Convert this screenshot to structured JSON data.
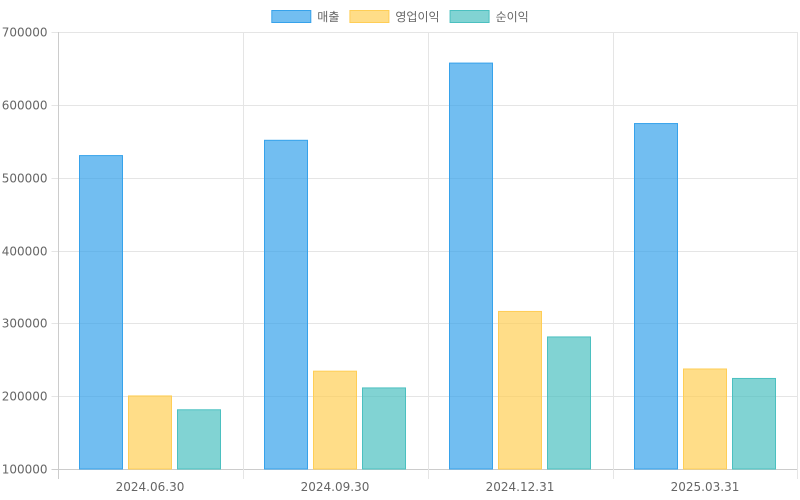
{
  "chart_data": {
    "type": "bar",
    "categories": [
      "2024.06.30",
      "2024.09.30",
      "2024.12.31",
      "2025.03.31"
    ],
    "series": [
      {
        "name": "매출",
        "values": [
          531000,
          552000,
          658000,
          575000
        ],
        "fill": "rgba(54,162,235,0.7)",
        "stroke": "#36a2eb"
      },
      {
        "name": "영업이익",
        "values": [
          201000,
          235000,
          317000,
          238000
        ],
        "fill": "rgba(255,206,86,0.7)",
        "stroke": "#ffce56"
      },
      {
        "name": "순이익",
        "values": [
          182000,
          212000,
          282000,
          225000
        ],
        "fill": "rgba(75,192,192,0.7)",
        "stroke": "#4bc0c0"
      }
    ],
    "yticks": [
      "100000",
      "200000",
      "300000",
      "400000",
      "500000",
      "600000",
      "700000"
    ],
    "ylim": [
      100000,
      700000
    ],
    "grid": true,
    "legend": "top"
  }
}
